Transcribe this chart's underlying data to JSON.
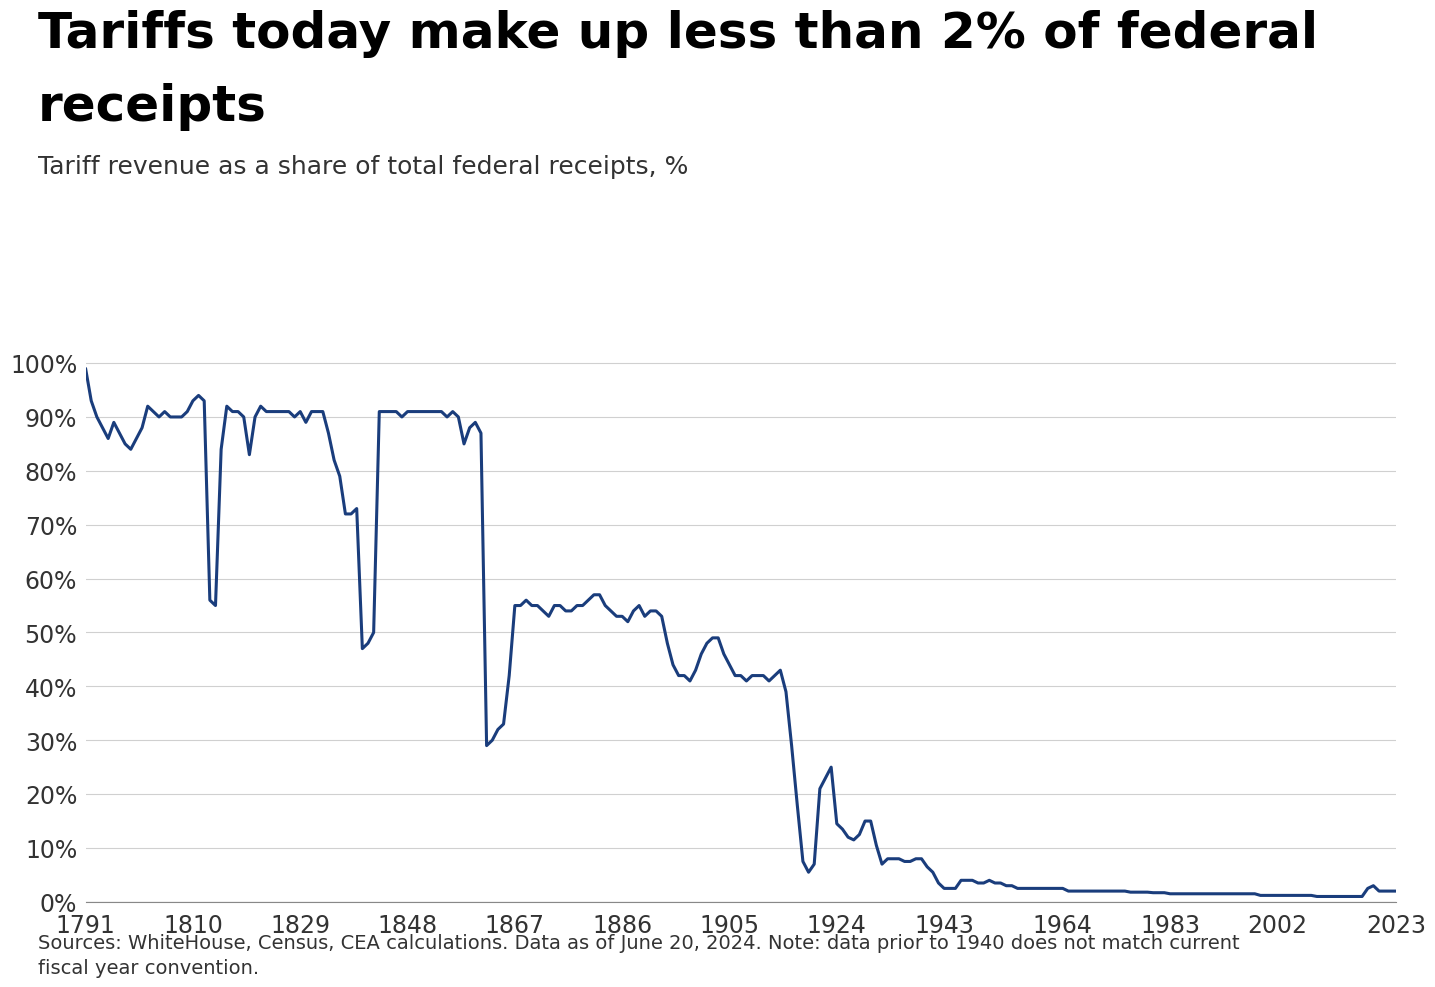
{
  "title_line1": "Tariffs today make up less than 2% of federal",
  "title_line2": "receipts",
  "subtitle": "Tariff revenue as a share of total federal receipts, %",
  "footnote": "Sources: WhiteHouse, Census, CEA calculations. Data as of June 20, 2024. Note: data prior to 1940 does not match current\nfiscal year convention.",
  "line_color": "#1a3d7c",
  "line_width": 2.2,
  "background_color": "#ffffff",
  "title_fontsize": 36,
  "subtitle_fontsize": 18,
  "footnote_fontsize": 14,
  "tick_fontsize": 17,
  "ylim": [
    0,
    105
  ],
  "xlim": [
    1791,
    2023
  ],
  "xticks": [
    1791,
    1810,
    1829,
    1848,
    1867,
    1886,
    1905,
    1924,
    1943,
    1964,
    1983,
    2002,
    2023
  ],
  "yticks": [
    0,
    10,
    20,
    30,
    40,
    50,
    60,
    70,
    80,
    90,
    100
  ],
  "years": [
    1791,
    1792,
    1793,
    1794,
    1795,
    1796,
    1797,
    1798,
    1799,
    1800,
    1801,
    1802,
    1803,
    1804,
    1805,
    1806,
    1807,
    1808,
    1809,
    1810,
    1811,
    1812,
    1813,
    1814,
    1815,
    1816,
    1817,
    1818,
    1819,
    1820,
    1821,
    1822,
    1823,
    1824,
    1825,
    1826,
    1827,
    1828,
    1829,
    1830,
    1831,
    1832,
    1833,
    1834,
    1835,
    1836,
    1837,
    1838,
    1839,
    1840,
    1841,
    1842,
    1843,
    1844,
    1845,
    1846,
    1847,
    1848,
    1849,
    1850,
    1851,
    1852,
    1853,
    1854,
    1855,
    1856,
    1857,
    1858,
    1859,
    1860,
    1861,
    1862,
    1863,
    1864,
    1865,
    1866,
    1867,
    1868,
    1869,
    1870,
    1871,
    1872,
    1873,
    1874,
    1875,
    1876,
    1877,
    1878,
    1879,
    1880,
    1881,
    1882,
    1883,
    1884,
    1885,
    1886,
    1887,
    1888,
    1889,
    1890,
    1891,
    1892,
    1893,
    1894,
    1895,
    1896,
    1897,
    1898,
    1899,
    1900,
    1901,
    1902,
    1903,
    1904,
    1905,
    1906,
    1907,
    1908,
    1909,
    1910,
    1911,
    1912,
    1913,
    1914,
    1915,
    1916,
    1917,
    1918,
    1919,
    1920,
    1921,
    1922,
    1923,
    1924,
    1925,
    1926,
    1927,
    1928,
    1929,
    1930,
    1931,
    1932,
    1933,
    1934,
    1935,
    1936,
    1937,
    1938,
    1939,
    1940,
    1941,
    1942,
    1943,
    1944,
    1945,
    1946,
    1947,
    1948,
    1949,
    1950,
    1951,
    1952,
    1953,
    1954,
    1955,
    1956,
    1957,
    1958,
    1959,
    1960,
    1961,
    1962,
    1963,
    1964,
    1965,
    1966,
    1967,
    1968,
    1969,
    1970,
    1971,
    1972,
    1973,
    1974,
    1975,
    1976,
    1977,
    1978,
    1979,
    1980,
    1981,
    1982,
    1983,
    1984,
    1985,
    1986,
    1987,
    1988,
    1989,
    1990,
    1991,
    1992,
    1993,
    1994,
    1995,
    1996,
    1997,
    1998,
    1999,
    2000,
    2001,
    2002,
    2003,
    2004,
    2005,
    2006,
    2007,
    2008,
    2009,
    2010,
    2011,
    2012,
    2013,
    2014,
    2015,
    2016,
    2017,
    2018,
    2019,
    2020,
    2021,
    2022,
    2023
  ],
  "values": [
    99.0,
    93.0,
    90.0,
    88.0,
    86.0,
    89.0,
    87.0,
    85.0,
    84.0,
    86.0,
    88.0,
    92.0,
    91.0,
    90.0,
    91.0,
    90.0,
    90.0,
    90.0,
    91.0,
    93.0,
    94.0,
    93.0,
    56.0,
    55.0,
    84.0,
    92.0,
    91.0,
    91.0,
    90.0,
    83.0,
    90.0,
    92.0,
    91.0,
    91.0,
    91.0,
    91.0,
    91.0,
    90.0,
    91.0,
    89.0,
    91.0,
    91.0,
    91.0,
    87.0,
    82.0,
    79.0,
    72.0,
    72.0,
    73.0,
    47.0,
    48.0,
    50.0,
    91.0,
    91.0,
    91.0,
    91.0,
    90.0,
    91.0,
    91.0,
    91.0,
    91.0,
    91.0,
    91.0,
    91.0,
    90.0,
    91.0,
    90.0,
    85.0,
    88.0,
    89.0,
    87.0,
    29.0,
    30.0,
    32.0,
    33.0,
    42.0,
    55.0,
    55.0,
    56.0,
    55.0,
    55.0,
    54.0,
    53.0,
    55.0,
    55.0,
    54.0,
    54.0,
    55.0,
    55.0,
    56.0,
    57.0,
    57.0,
    55.0,
    54.0,
    53.0,
    53.0,
    52.0,
    54.0,
    55.0,
    53.0,
    54.0,
    54.0,
    53.0,
    48.0,
    44.0,
    42.0,
    42.0,
    41.0,
    43.0,
    46.0,
    48.0,
    49.0,
    49.0,
    46.0,
    44.0,
    42.0,
    42.0,
    41.0,
    42.0,
    42.0,
    42.0,
    41.0,
    42.0,
    43.0,
    39.0,
    29.0,
    18.0,
    7.5,
    5.5,
    7.0,
    21.0,
    23.0,
    25.0,
    14.5,
    13.5,
    12.0,
    11.5,
    12.5,
    15.0,
    15.0,
    10.5,
    7.0,
    8.0,
    8.0,
    8.0,
    7.5,
    7.5,
    8.0,
    8.0,
    6.5,
    5.5,
    3.5,
    2.5,
    2.5,
    2.5,
    4.0,
    4.0,
    4.0,
    3.5,
    3.5,
    4.0,
    3.5,
    3.5,
    3.0,
    3.0,
    2.5,
    2.5,
    2.5,
    2.5,
    2.5,
    2.5,
    2.5,
    2.5,
    2.5,
    2.0,
    2.0,
    2.0,
    2.0,
    2.0,
    2.0,
    2.0,
    2.0,
    2.0,
    2.0,
    2.0,
    1.8,
    1.8,
    1.8,
    1.8,
    1.7,
    1.7,
    1.7,
    1.5,
    1.5,
    1.5,
    1.5,
    1.5,
    1.5,
    1.5,
    1.5,
    1.5,
    1.5,
    1.5,
    1.5,
    1.5,
    1.5,
    1.5,
    1.5,
    1.2,
    1.2,
    1.2,
    1.2,
    1.2,
    1.2,
    1.2,
    1.2,
    1.2,
    1.2,
    1.0,
    1.0,
    1.0,
    1.0,
    1.0,
    1.0,
    1.0,
    1.0,
    1.0,
    2.5,
    3.0,
    2.0,
    2.0,
    2.0,
    2.0
  ]
}
